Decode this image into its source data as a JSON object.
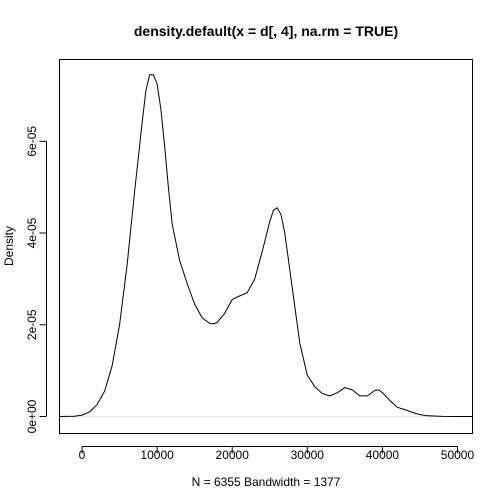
{
  "chart_data": {
    "type": "line",
    "title": "density.default(x = d[, 4], na.rm = TRUE)",
    "xlabel": "N = 6355   Bandwidth = 1377",
    "ylabel": "Density",
    "xlim": [
      -3000,
      52000
    ],
    "ylim": [
      0,
      7.5e-05
    ],
    "x_ticks": [
      0,
      10000,
      20000,
      30000,
      40000,
      50000
    ],
    "x_tick_labels": [
      "0",
      "10000",
      "20000",
      "30000",
      "40000",
      "50000"
    ],
    "y_ticks": [
      0,
      2e-05,
      4e-05,
      6e-05
    ],
    "y_tick_labels": [
      "0e+00",
      "2e-05",
      "4e-05",
      "6e-05"
    ],
    "grid": false,
    "line_color": "#000000",
    "series": [
      {
        "x": [
          -3000,
          -1000,
          0,
          1000,
          2000,
          3000,
          4000,
          5000,
          6000,
          7000,
          8000,
          8500,
          9000,
          9500,
          10000,
          10500,
          11000,
          11500,
          12000,
          13000,
          14000,
          15000,
          16000,
          17000,
          17500,
          18000,
          19000,
          20000,
          21000,
          22000,
          23000,
          24000,
          25000,
          25500,
          26000,
          26500,
          27000,
          28000,
          29000,
          30000,
          31000,
          32000,
          33000,
          34000,
          35000,
          36000,
          37000,
          38000,
          39000,
          39500,
          40000,
          41000,
          42000,
          43000,
          44000,
          45000,
          46000,
          48000,
          50000,
          52000
        ],
        "y": [
          0,
          5e-08,
          3e-07,
          1e-06,
          2.6e-06,
          5.5e-06,
          1.1e-05,
          2e-05,
          3.3e-05,
          4.9e-05,
          6.4e-05,
          7.1e-05,
          7.45e-05,
          7.45e-05,
          7.25e-05,
          6.7e-05,
          5.9e-05,
          5e-05,
          4.2e-05,
          3.4e-05,
          2.9e-05,
          2.45e-05,
          2.15e-05,
          2.03e-05,
          2.02e-05,
          2.05e-05,
          2.25e-05,
          2.55e-05,
          2.63e-05,
          2.7e-05,
          3e-05,
          3.6e-05,
          4.25e-05,
          4.5e-05,
          4.55e-05,
          4.4e-05,
          4e-05,
          2.8e-05,
          1.6e-05,
          9e-06,
          6.5e-06,
          5e-06,
          4.5e-06,
          5.2e-06,
          6.3e-06,
          5.8e-06,
          4.5e-06,
          4.5e-06,
          5.7e-06,
          5.8e-06,
          5.2e-06,
          3.5e-06,
          2e-06,
          1.5e-06,
          9e-07,
          4e-07,
          1.5e-07,
          3e-08,
          5e-09,
          0
        ]
      }
    ]
  }
}
